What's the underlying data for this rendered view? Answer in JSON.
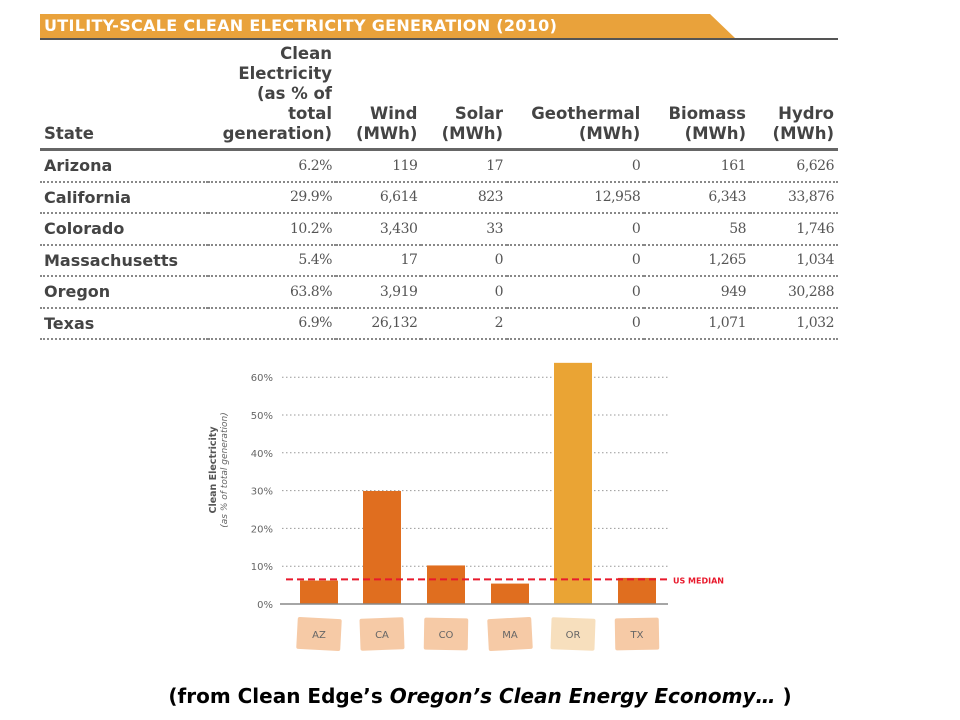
{
  "table": {
    "title": "UTILITY-SCALE CLEAN ELECTRICITY GENERATION (2010)",
    "headers": [
      "State",
      "Clean Electricity (as % of total generation)",
      "Wind (MWh)",
      "Solar (MWh)",
      "Geothermal (MWh)",
      "Biomass (MWh)",
      "Hydro (MWh)"
    ],
    "rows": [
      [
        "Arizona",
        "6.2%",
        "119",
        "17",
        "0",
        "161",
        "6,626"
      ],
      [
        "California",
        "29.9%",
        "6,614",
        "823",
        "12,958",
        "6,343",
        "33,876"
      ],
      [
        "Colorado",
        "10.2%",
        "3,430",
        "33",
        "0",
        "58",
        "1,746"
      ],
      [
        "Massachusetts",
        "5.4%",
        "17",
        "0",
        "0",
        "1,265",
        "1,034"
      ],
      [
        "Oregon",
        "63.8%",
        "3,919",
        "0",
        "0",
        "949",
        "30,288"
      ],
      [
        "Texas",
        "6.9%",
        "26,132",
        "2",
        "0",
        "1,071",
        "1,032"
      ]
    ]
  },
  "chart_data": {
    "type": "bar",
    "categories": [
      "AZ",
      "CA",
      "CO",
      "MA",
      "OR",
      "TX"
    ],
    "values": [
      6.2,
      29.9,
      10.2,
      5.4,
      63.8,
      6.9
    ],
    "ylabel": "Clean Electricity",
    "ylabel_sub": "(as % of total generation)",
    "yticks": [
      "0%",
      "10%",
      "20%",
      "30%",
      "40%",
      "50%",
      "60%"
    ],
    "ylim": [
      0,
      64
    ],
    "grid": true,
    "reference_line": {
      "label": "US MEDIAN",
      "value": 6.5,
      "color": "#e8192c"
    },
    "bar_color": "#e06e1f",
    "highlight_color": "#eaa434",
    "highlight": "OR",
    "map_color": "#f6caa6",
    "map_highlight_color": "#f7dfbd"
  },
  "caption": {
    "prefix": "(from Clean Edge’s ",
    "italic": "Oregon’s Clean Energy Economy…",
    "suffix": " )"
  }
}
